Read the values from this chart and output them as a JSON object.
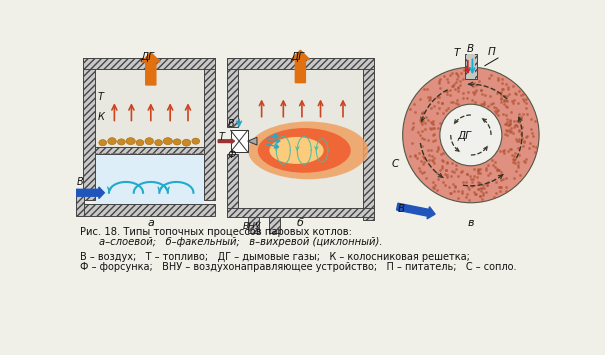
{
  "bg_color": "#f0efe8",
  "title_line1": "Рис. 18. Типы топочных процессов паровых котлов:",
  "title_line2_italic": "а–слоевой;   б–факельный;   в–вихревой (циклонный).",
  "legend_line1": "В – воздух;   Т – топливо;   ДГ – дымовые газы;   К – колосниковая решетка;",
  "legend_line2": "Ф – форсунка;   ВНУ – воздухонаправляющее устройство;   П – питатель;   С – сопло.",
  "wall_face": "#c8c8c8",
  "wall_edge": "#444444",
  "orange_dg": "#e07010",
  "red_up": "#cc4422",
  "cyan_air": "#22aacc",
  "blue_air": "#2255bb",
  "coal_face": "#cc8822",
  "coal_edge": "#996611",
  "flame_outer": "#f0a060",
  "flame_mid": "#f06030",
  "flame_inner": "#ffdd88",
  "swirl_col": "#44bbaa",
  "cyclone_outer": "#d87a60",
  "cyclone_fill": "#e09080",
  "text_col": "#111111",
  "label_a": "а",
  "label_b": "б",
  "label_c": "в"
}
